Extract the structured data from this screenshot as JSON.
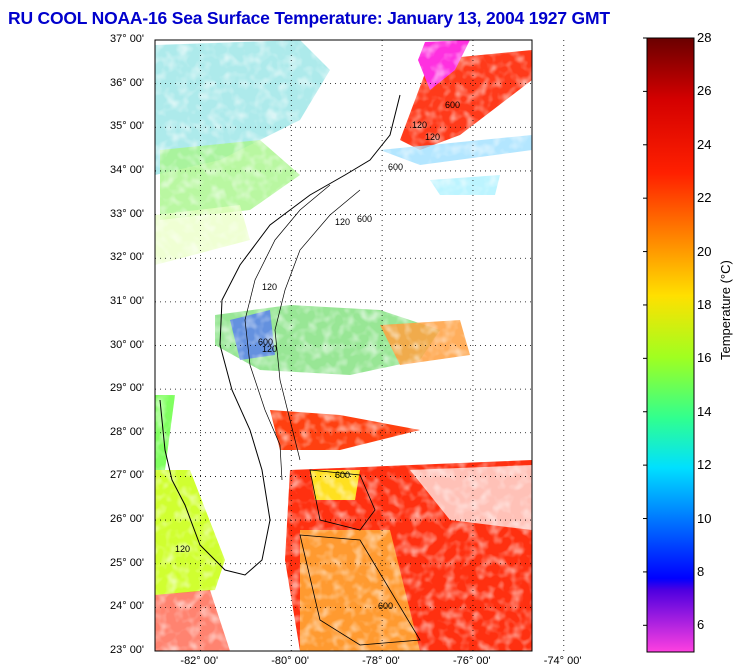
{
  "title": "RU COOL  NOAA-16  Sea Surface Temperature:  January 13, 2004 1927 GMT",
  "map": {
    "lat_labels": [
      "37° 00'",
      "36° 00'",
      "35° 00'",
      "34° 00'",
      "33° 00'",
      "32° 00'",
      "31° 00'",
      "30° 00'",
      "29° 00'",
      "28° 00'",
      "27° 00'",
      "26° 00'",
      "25° 00'",
      "24° 00'",
      "23° 00'"
    ],
    "lon_labels": [
      "-82° 00'",
      "-80° 00'",
      "-78° 00'",
      "-76° 00'",
      "-74° 00'"
    ],
    "lat_range": [
      23,
      37
    ],
    "lon_range": [
      -83,
      -74.7
    ],
    "contour_labels": [
      "120",
      "600",
      "120",
      "600",
      "120",
      "600",
      "120",
      "600",
      "120",
      "600",
      "120",
      "600"
    ]
  },
  "colorbar": {
    "title": "Temperature (°C)",
    "ticks": [
      "28",
      "26",
      "24",
      "22",
      "20",
      "18",
      "16",
      "14",
      "12",
      "10",
      "8",
      "6"
    ],
    "range": [
      5,
      28
    ]
  },
  "colors": {
    "title": "#0000cc",
    "land": "#ffffff",
    "clouds": "#ffffff"
  }
}
